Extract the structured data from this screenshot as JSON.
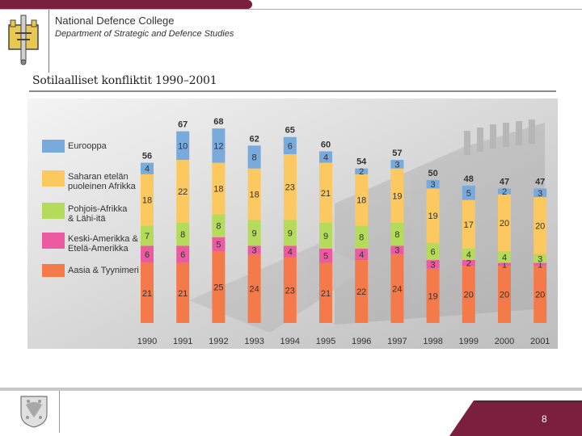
{
  "header": {
    "org_title": "National Defence College",
    "org_subtitle": "Department of Strategic and Defence Studies"
  },
  "footer": {
    "page_number": "8"
  },
  "chart_data": {
    "type": "bar",
    "stacked": true,
    "title": "Sotilaalliset konfliktit 1990–2001",
    "categories": [
      "1990",
      "1991",
      "1992",
      "1993",
      "1994",
      "1995",
      "1996",
      "1997",
      "1998",
      "1999",
      "2000",
      "2001"
    ],
    "totals": [
      56,
      67,
      68,
      62,
      65,
      60,
      54,
      57,
      50,
      48,
      47,
      47
    ],
    "series": [
      {
        "name": "Aasia & Tyynimeri",
        "color": "#f47a4a",
        "values": [
          21,
          21,
          25,
          24,
          23,
          21,
          22,
          24,
          19,
          20,
          20,
          20
        ]
      },
      {
        "name": "Keski-Amerikka & Etelä-Amerikka",
        "color": "#ec5aa0",
        "values": [
          6,
          6,
          5,
          3,
          4,
          5,
          4,
          3,
          3,
          2,
          1,
          1
        ]
      },
      {
        "name": "Pohjois-Afrikka & Lähi-itä",
        "color": "#b4dc5a",
        "values": [
          7,
          8,
          8,
          9,
          9,
          9,
          8,
          8,
          6,
          4,
          4,
          3
        ]
      },
      {
        "name": "Saharan etelän puoleinen Afrikka",
        "color": "#fcc860",
        "values": [
          18,
          22,
          18,
          18,
          23,
          21,
          18,
          19,
          19,
          17,
          20,
          20
        ]
      },
      {
        "name": "Eurooppa",
        "color": "#78aadc",
        "values": [
          4,
          10,
          12,
          8,
          6,
          4,
          2,
          3,
          3,
          5,
          2,
          3
        ]
      }
    ],
    "legend_labels": [
      [
        "Eurooppa"
      ],
      [
        "Saharan etelän",
        "puoleinen Afrikka"
      ],
      [
        "Pohjois-Afrikka",
        "& Lähi-itä"
      ],
      [
        "Keski-Amerikka &",
        "Etelä-Amerikka"
      ],
      [
        "Aasia & Tyynimeri"
      ]
    ],
    "legend_colors": [
      "#78aadc",
      "#fcc860",
      "#b4dc5a",
      "#ec5aa0",
      "#f47a4a"
    ],
    "legend_position": "left",
    "ylim": [
      0,
      70
    ],
    "xlabel": "",
    "ylabel": ""
  }
}
